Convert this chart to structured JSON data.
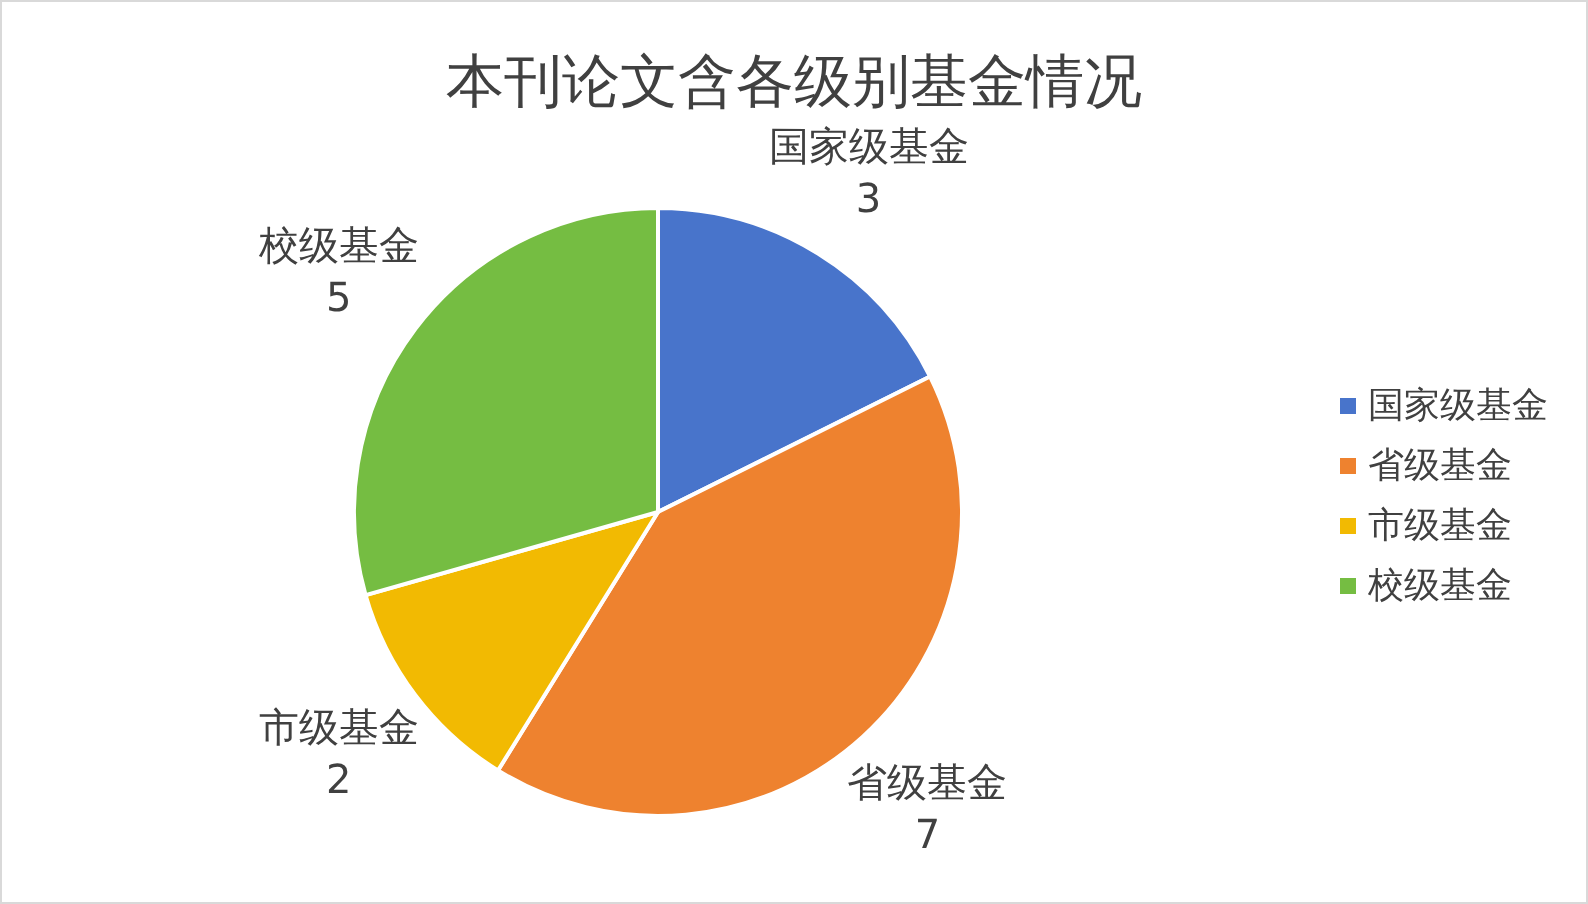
{
  "chart_data": {
    "type": "pie",
    "title": "本刊论文含各级别基金情况",
    "categories": [
      "国家级基金",
      "省级基金",
      "市级基金",
      "校级基金"
    ],
    "values": [
      3,
      7,
      2,
      5
    ],
    "colors": [
      "#4874cb",
      "#ee822f",
      "#f2ba02",
      "#75bd42"
    ],
    "data_labels": true,
    "legend": "right"
  }
}
